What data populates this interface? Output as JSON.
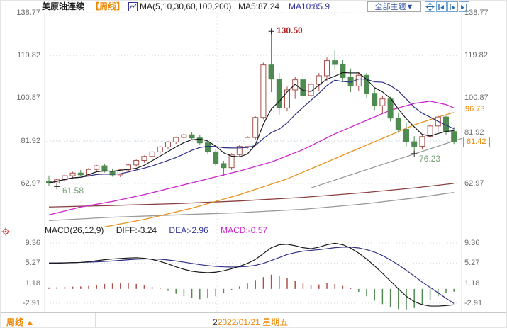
{
  "header": {
    "symbol": "美原油连续",
    "period_tag": "【周线】",
    "ma_label": "MA(5,10,30,60,100,200)",
    "ma5": "MA5:87.24",
    "ma10": "MA10:85.9",
    "theme_button": "全部主题▼"
  },
  "annotations": {
    "high": "130.50",
    "low_left": "61.58",
    "low_right": "76.23"
  },
  "price_tags": {
    "ma_value": "96.73",
    "last_price": "81.42"
  },
  "macd_header": {
    "title": "MACD(26,12,9)",
    "diff": "DIFF:-3.24",
    "dea": "DEA:-2.96",
    "macd": "MACD:-0.57"
  },
  "footer": {
    "period": "周线",
    "arrow": "▲",
    "prefix": "2",
    "date": "2022/01/21 星期五"
  },
  "colors": {
    "up": "#a9504b",
    "down": "#4f8b51",
    "ma5": "#1a1a1a",
    "ma10": "#2f2f86",
    "ma30": "#cc22cc",
    "ma60": "#e8921e",
    "ma100": "#999999",
    "ma200": "#8b4040",
    "trendline": "#8f8f8f",
    "diff": "#1a1a1a",
    "dea": "#2f2f86",
    "hist_up": "#a9504b",
    "hist_down": "#4f8b51",
    "price_line": "#3d85c6",
    "grid": "#d9d9d9",
    "accent_orange": "#ef8807",
    "toolbar_blue": "#2b6fb5",
    "annotation_red": "#b22222",
    "annotation_green": "#74a376"
  },
  "chart_data": {
    "type": "candlestick+macd",
    "title": "美原油连续 【周线】 WTI crude oil continuous, weekly",
    "legend": [
      "MA(5,10,30,60,100,200)",
      "MA5:87.24",
      "MA10:85.9"
    ],
    "main": {
      "yticks": [
        138.77,
        119.82,
        100.87,
        81.92,
        62.97
      ],
      "last_price": 81.42,
      "marked_high": 130.5,
      "marked_lows": [
        61.58,
        76.23
      ],
      "candles_ohlc": [
        [
          64.0,
          66.5,
          62.0,
          63.2
        ],
        [
          63.2,
          65.0,
          61.58,
          64.6
        ],
        [
          64.6,
          67.0,
          63.4,
          66.4
        ],
        [
          66.4,
          68.2,
          65.0,
          67.6
        ],
        [
          67.6,
          69.0,
          66.2,
          66.8
        ],
        [
          66.8,
          69.8,
          66.0,
          69.2
        ],
        [
          69.2,
          71.2,
          68.0,
          70.8
        ],
        [
          70.8,
          71.8,
          67.8,
          68.4
        ],
        [
          68.4,
          69.6,
          66.0,
          66.8
        ],
        [
          66.8,
          69.4,
          65.8,
          69.0
        ],
        [
          69.0,
          71.6,
          68.2,
          71.2
        ],
        [
          71.2,
          73.6,
          70.4,
          73.2
        ],
        [
          73.2,
          75.4,
          72.2,
          75.0
        ],
        [
          75.0,
          77.4,
          74.0,
          77.0
        ],
        [
          77.0,
          79.6,
          76.2,
          79.2
        ],
        [
          79.2,
          81.8,
          78.4,
          81.4
        ],
        [
          81.4,
          83.8,
          80.6,
          83.4
        ],
        [
          83.4,
          85.2,
          75.5,
          84.6
        ],
        [
          84.6,
          85.8,
          82.6,
          83.2
        ],
        [
          83.2,
          84.4,
          80.2,
          81.0
        ],
        [
          81.0,
          82.2,
          76.2,
          77.0
        ],
        [
          77.0,
          78.4,
          70.8,
          71.8
        ],
        [
          71.8,
          73.0,
          66.4,
          70.0
        ],
        [
          70.0,
          76.4,
          69.0,
          75.8
        ],
        [
          75.8,
          80.0,
          74.6,
          79.4
        ],
        [
          79.4,
          84.0,
          78.2,
          83.4
        ],
        [
          83.4,
          92.8,
          82.4,
          92.3
        ],
        [
          92.3,
          116.6,
          91.5,
          115.6
        ],
        [
          115.6,
          130.5,
          103.5,
          109.3
        ],
        [
          109.3,
          112.0,
          93.5,
          96.5
        ],
        [
          96.5,
          106.0,
          95.0,
          104.5
        ],
        [
          104.5,
          110.5,
          100.5,
          109.0
        ],
        [
          109.0,
          111.5,
          100.0,
          102.0
        ],
        [
          102.0,
          108.5,
          98.5,
          107.0
        ],
        [
          107.0,
          112.0,
          104.0,
          110.8
        ],
        [
          110.8,
          119.0,
          108.5,
          117.5
        ],
        [
          117.5,
          122.3,
          113.5,
          115.8
        ],
        [
          115.8,
          118.0,
          108.0,
          110.0
        ],
        [
          110.0,
          114.0,
          103.5,
          106.2
        ],
        [
          106.2,
          112.5,
          104.0,
          111.0
        ],
        [
          111.0,
          112.0,
          101.0,
          103.0
        ],
        [
          103.0,
          105.5,
          95.5,
          97.5
        ],
        [
          97.5,
          102.0,
          94.0,
          100.5
        ],
        [
          100.5,
          101.5,
          90.5,
          92.0
        ],
        [
          92.0,
          94.5,
          85.5,
          87.0
        ],
        [
          87.0,
          90.0,
          79.5,
          81.5
        ],
        [
          81.5,
          84.0,
          76.23,
          79.5
        ],
        [
          79.5,
          84.5,
          78.0,
          83.8
        ],
        [
          83.8,
          89.5,
          82.5,
          88.5
        ],
        [
          88.5,
          93.5,
          86.0,
          92.5
        ],
        [
          92.5,
          93.0,
          84.5,
          86.0
        ],
        [
          86.0,
          88.0,
          80.5,
          81.42
        ]
      ],
      "ma_waypoints": {
        "ma30": [
          [
            0,
            49
          ],
          [
            4,
            52.5
          ],
          [
            8,
            55
          ],
          [
            12,
            58
          ],
          [
            16,
            61.5
          ],
          [
            20,
            65
          ],
          [
            24,
            68.5
          ],
          [
            28,
            72.5
          ],
          [
            32,
            78
          ],
          [
            36,
            85
          ],
          [
            40,
            91
          ],
          [
            43,
            95.5
          ],
          [
            46,
            98.5
          ],
          [
            48,
            99.5
          ],
          [
            50,
            98
          ],
          [
            51,
            96.5
          ]
        ],
        "ma60": [
          [
            0,
            39
          ],
          [
            6,
            43
          ],
          [
            12,
            47
          ],
          [
            18,
            52
          ],
          [
            24,
            58
          ],
          [
            30,
            65
          ],
          [
            34,
            71
          ],
          [
            38,
            77
          ],
          [
            42,
            83
          ],
          [
            46,
            89
          ],
          [
            49,
            92.5
          ],
          [
            51,
            94.5
          ]
        ],
        "ma100": [
          [
            0,
            46.5
          ],
          [
            8,
            48
          ],
          [
            16,
            49
          ],
          [
            24,
            50
          ],
          [
            32,
            51.5
          ],
          [
            40,
            54
          ],
          [
            46,
            56.5
          ],
          [
            51,
            59
          ]
        ],
        "ma200": [
          [
            0,
            52.5
          ],
          [
            8,
            53.2
          ],
          [
            16,
            54
          ],
          [
            24,
            55.2
          ],
          [
            32,
            56.8
          ],
          [
            40,
            59
          ],
          [
            46,
            61
          ],
          [
            51,
            63
          ]
        ]
      },
      "trendline": [
        [
          33,
          61
        ],
        [
          52,
          83
        ]
      ]
    },
    "macd": {
      "params": [
        26,
        12,
        9
      ],
      "yticks": [
        9.36,
        5.27,
        1.18,
        -2.91
      ],
      "last": {
        "diff": -3.24,
        "dea": -2.96,
        "macd": -0.57
      },
      "diff": [
        5.2,
        5.25,
        5.3,
        5.35,
        5.4,
        5.55,
        5.75,
        5.95,
        6.1,
        6.2,
        6.3,
        6.35,
        6.25,
        6.0,
        5.6,
        5.1,
        4.5,
        4.0,
        3.6,
        3.4,
        3.3,
        3.4,
        3.7,
        4.1,
        4.6,
        5.2,
        6.0,
        7.2,
        8.4,
        9.0,
        9.1,
        8.8,
        8.4,
        8.2,
        8.5,
        9.0,
        9.3,
        9.0,
        8.3,
        7.3,
        6.1,
        4.7,
        3.2,
        1.6,
        0.0,
        -1.5,
        -2.6,
        -3.2,
        -3.5,
        -3.5,
        -3.4,
        -3.24
      ],
      "dea": [
        5.3,
        5.3,
        5.32,
        5.35,
        5.4,
        5.45,
        5.52,
        5.6,
        5.7,
        5.82,
        5.95,
        6.05,
        6.1,
        6.1,
        6.05,
        5.9,
        5.7,
        5.45,
        5.2,
        4.95,
        4.75,
        4.6,
        4.5,
        4.45,
        4.5,
        4.6,
        4.8,
        5.2,
        5.8,
        6.4,
        7.0,
        7.4,
        7.7,
        7.85,
        8.0,
        8.2,
        8.4,
        8.5,
        8.5,
        8.35,
        8.0,
        7.5,
        6.8,
        5.9,
        4.9,
        3.8,
        2.6,
        1.4,
        0.3,
        -0.8,
        -1.9,
        -2.96
      ],
      "hist": [
        0.3,
        0.35,
        0.4,
        0.45,
        0.5,
        0.6,
        0.8,
        1.0,
        1.1,
        1.2,
        1.2,
        1.0,
        0.7,
        0.4,
        0.15,
        -0.4,
        -1.0,
        -1.5,
        -1.9,
        -2.1,
        -1.9,
        -1.5,
        -0.9,
        -0.3,
        0.5,
        1.1,
        1.8,
        2.4,
        2.9,
        2.7,
        2.2,
        1.6,
        1.1,
        0.8,
        0.9,
        1.2,
        1.0,
        0.6,
        0.2,
        -0.6,
        -1.5,
        -2.4,
        -3.1,
        -3.7,
        -4.1,
        -4.2,
        -3.9,
        -3.2,
        -2.3,
        -1.5,
        -0.9,
        -0.57
      ]
    }
  }
}
